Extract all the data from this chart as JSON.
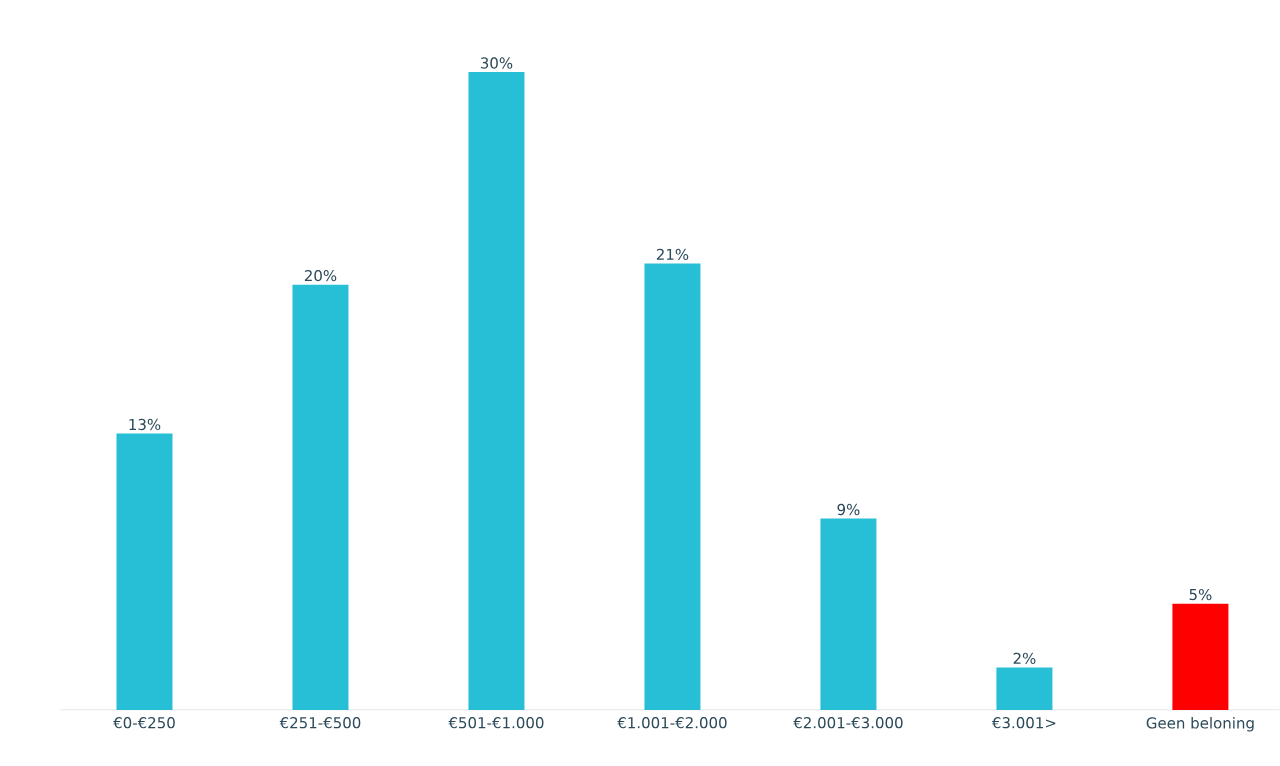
{
  "chart_data": {
    "type": "bar",
    "categories": [
      "€0-€250",
      "€251-€500",
      "€501-€1.000",
      "€1.001-€2.000",
      "€2.001-€3.000",
      "€3.001>",
      "Geen beloning"
    ],
    "values": [
      13,
      20,
      30,
      21,
      9,
      2,
      5
    ],
    "colors": [
      "#26bfd6",
      "#26bfd6",
      "#26bfd6",
      "#26bfd6",
      "#26bfd6",
      "#26bfd6",
      "#ff0000"
    ],
    "value_labels": [
      "13%",
      "20%",
      "30%",
      "21%",
      "9%",
      "2%",
      "5%"
    ]
  }
}
